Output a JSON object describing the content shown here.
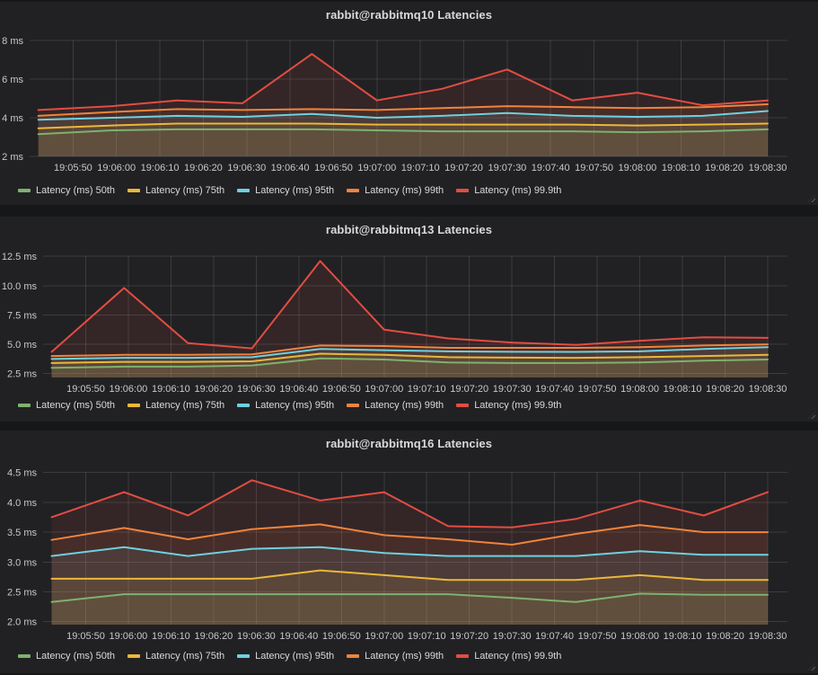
{
  "chart_data": {
    "type": "area",
    "grid": true,
    "legend_position": "bottom-left",
    "x_axis": {
      "tick_labels": [
        "19:05:50",
        "19:06:00",
        "19:06:10",
        "19:06:20",
        "19:06:30",
        "19:06:40",
        "19:06:50",
        "19:07:00",
        "19:07:10",
        "19:07:20",
        "19:07:30",
        "19:07:40",
        "19:07:50",
        "19:08:00",
        "19:08:10",
        "19:08:20",
        "19:08:30"
      ],
      "sample_times": [
        "19:05:42",
        "19:05:59",
        "19:06:14",
        "19:06:29",
        "19:06:45",
        "19:07:00",
        "19:07:15",
        "19:07:30",
        "19:07:45",
        "19:08:00",
        "19:08:15",
        "19:08:30"
      ]
    },
    "panels": [
      {
        "title": "rabbit@rabbitmq10 Latencies",
        "y_unit": "ms",
        "ylim": [
          2,
          8.47
        ],
        "yticks": [
          {
            "value": 8,
            "label": "8 ms"
          },
          {
            "value": 6,
            "label": "6 ms"
          },
          {
            "value": 4,
            "label": "4 ms"
          },
          {
            "value": 2,
            "label": "2 ms"
          }
        ],
        "series": [
          {
            "key": "p50",
            "name": "Latency (ms) 50th",
            "color": "#7eb26d",
            "values": [
              3.15,
              3.35,
              3.4,
              3.4,
              3.4,
              3.35,
              3.3,
              3.3,
              3.3,
              3.25,
              3.3,
              3.4
            ]
          },
          {
            "key": "p75",
            "name": "Latency (ms) 75th",
            "color": "#eab839",
            "values": [
              3.45,
              3.6,
              3.7,
              3.7,
              3.7,
              3.65,
              3.65,
              3.65,
              3.65,
              3.6,
              3.65,
              3.7
            ]
          },
          {
            "key": "p95",
            "name": "Latency (ms) 95th",
            "color": "#6ed0e0",
            "values": [
              3.9,
              4.0,
              4.1,
              4.05,
              4.2,
              4.0,
              4.1,
              4.25,
              4.1,
              4.05,
              4.1,
              4.35
            ]
          },
          {
            "key": "p99",
            "name": "Latency (ms) 99th",
            "color": "#ef843c",
            "values": [
              4.1,
              4.3,
              4.45,
              4.4,
              4.45,
              4.4,
              4.5,
              4.6,
              4.55,
              4.5,
              4.55,
              4.7
            ]
          },
          {
            "key": "p999",
            "name": "Latency (ms) 99.9th",
            "color": "#e24d42",
            "values": [
              4.4,
              4.6,
              4.9,
              4.75,
              7.3,
              4.9,
              5.5,
              6.5,
              4.9,
              5.3,
              4.65,
              4.9
            ]
          }
        ]
      },
      {
        "title": "rabbit@rabbitmq13 Latencies",
        "y_unit": "ms",
        "ylim": [
          2.17,
          13.05
        ],
        "yticks": [
          {
            "value": 12.5,
            "label": "12.5 ms"
          },
          {
            "value": 10.0,
            "label": "10.0 ms"
          },
          {
            "value": 7.5,
            "label": "7.5 ms"
          },
          {
            "value": 5.0,
            "label": "5.0 ms"
          },
          {
            "value": 2.5,
            "label": "2.5 ms"
          }
        ],
        "series": [
          {
            "key": "p50",
            "name": "Latency (ms) 50th",
            "color": "#7eb26d",
            "values": [
              3.0,
              3.1,
              3.1,
              3.2,
              3.8,
              3.7,
              3.45,
              3.4,
              3.4,
              3.45,
              3.6,
              3.7
            ]
          },
          {
            "key": "p75",
            "name": "Latency (ms) 75th",
            "color": "#eab839",
            "values": [
              3.4,
              3.5,
              3.5,
              3.55,
              4.2,
              4.1,
              3.9,
              3.86,
              3.85,
              3.9,
              4.0,
              4.1
            ]
          },
          {
            "key": "p95",
            "name": "Latency (ms) 95th",
            "color": "#6ed0e0",
            "values": [
              3.75,
              3.85,
              3.85,
              3.9,
              4.6,
              4.5,
              4.4,
              4.36,
              4.35,
              4.4,
              4.6,
              4.75
            ]
          },
          {
            "key": "p99",
            "name": "Latency (ms) 99th",
            "color": "#ef843c",
            "values": [
              4.0,
              4.1,
              4.1,
              4.15,
              4.9,
              4.85,
              4.7,
              4.7,
              4.7,
              4.75,
              4.9,
              5.0
            ]
          },
          {
            "key": "p999",
            "name": "Latency (ms) 99.9th",
            "color": "#e24d42",
            "values": [
              4.35,
              9.8,
              5.1,
              4.65,
              12.1,
              6.25,
              5.5,
              5.15,
              4.95,
              5.3,
              5.6,
              5.55
            ]
          }
        ]
      },
      {
        "title": "rabbit@rabbitmq16 Latencies",
        "y_unit": "ms",
        "ylim": [
          1.95,
          4.63
        ],
        "yticks": [
          {
            "value": 4.5,
            "label": "4.5 ms"
          },
          {
            "value": 4.0,
            "label": "4.0 ms"
          },
          {
            "value": 3.5,
            "label": "3.5 ms"
          },
          {
            "value": 3.0,
            "label": "3.0 ms"
          },
          {
            "value": 2.5,
            "label": "2.5 ms"
          },
          {
            "value": 2.0,
            "label": "2.0 ms"
          }
        ],
        "series": [
          {
            "key": "p50",
            "name": "Latency (ms) 50th",
            "color": "#7eb26d",
            "values": [
              2.33,
              2.46,
              2.46,
              2.46,
              2.46,
              2.46,
              2.46,
              2.4,
              2.33,
              2.47,
              2.45,
              2.45
            ]
          },
          {
            "key": "p75",
            "name": "Latency (ms) 75th",
            "color": "#eab839",
            "values": [
              2.72,
              2.72,
              2.72,
              2.72,
              2.86,
              2.78,
              2.7,
              2.7,
              2.7,
              2.78,
              2.7,
              2.7
            ]
          },
          {
            "key": "p95",
            "name": "Latency (ms) 95th",
            "color": "#6ed0e0",
            "values": [
              3.1,
              3.25,
              3.1,
              3.22,
              3.25,
              3.15,
              3.1,
              3.1,
              3.1,
              3.18,
              3.12,
              3.12
            ]
          },
          {
            "key": "p99",
            "name": "Latency (ms) 99th",
            "color": "#ef843c",
            "values": [
              3.37,
              3.57,
              3.38,
              3.55,
              3.63,
              3.45,
              3.38,
              3.29,
              3.47,
              3.62,
              3.5,
              3.5
            ]
          },
          {
            "key": "p999",
            "name": "Latency (ms) 99.9th",
            "color": "#e24d42",
            "values": [
              3.75,
              4.17,
              3.78,
              4.37,
              4.03,
              4.17,
              3.6,
              3.58,
              3.72,
              4.03,
              3.78,
              4.17
            ]
          }
        ]
      }
    ]
  },
  "theme": {
    "page_bg": "#161719",
    "panel_bg": "#212124",
    "text_color": "#d8d9da",
    "tick_color": "#c7c8c9",
    "fill_opacity": 0.1
  }
}
